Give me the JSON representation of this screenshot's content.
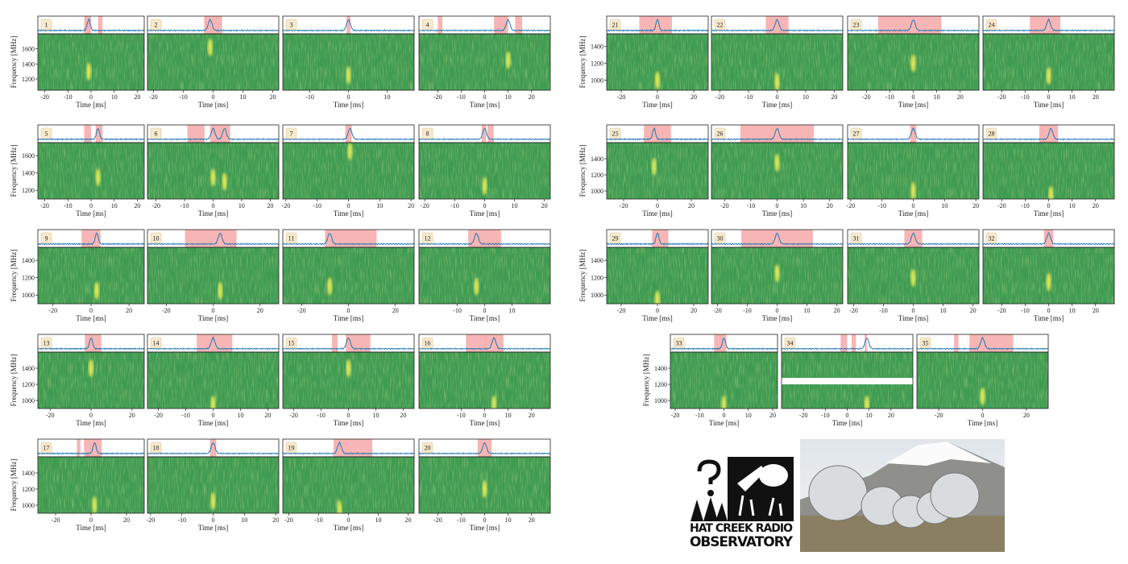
{
  "chart_data": [
    {
      "type": "spectrogram",
      "title": "1",
      "xlabel": "Time [ms]",
      "ylabel": "Frequency [MHz]",
      "xlim": [
        -23,
        23
      ],
      "xticks": [
        -20,
        -10,
        0,
        10,
        20
      ],
      "ylim": [
        1050,
        1800
      ],
      "yticks": [
        1200,
        1400,
        1600
      ],
      "spans": [
        [
          -3,
          0
        ],
        [
          3,
          5
        ]
      ],
      "bursts": [
        [
          -1,
          1300
        ]
      ]
    },
    {
      "type": "spectrogram",
      "title": "2",
      "xlabel": "Time [ms]",
      "xlim": [
        -22,
        22
      ],
      "xticks": [
        -20,
        -10,
        0,
        10,
        20
      ],
      "ylim": [
        1050,
        1800
      ],
      "spans": [
        [
          -3,
          3
        ]
      ],
      "bursts": [
        [
          -1,
          1620
        ]
      ]
    },
    {
      "type": "spectrogram",
      "title": "3",
      "xlabel": "Time [ms]",
      "xlim": [
        -17,
        17
      ],
      "xticks": [
        -10,
        0,
        10
      ],
      "ylim": [
        1050,
        1800
      ],
      "spans": [
        [
          -0.5,
          0.5
        ]
      ],
      "bursts": [
        [
          0,
          1250
        ]
      ]
    },
    {
      "type": "spectrogram",
      "title": "4",
      "xlabel": "Time [ms]",
      "xlim": [
        -28,
        28
      ],
      "xticks": [
        -20,
        -10,
        0,
        10,
        20
      ],
      "ylim": [
        1050,
        1800
      ],
      "spans": [
        [
          -20,
          -18
        ],
        [
          4,
          10
        ],
        [
          13,
          16
        ]
      ],
      "bursts": [
        [
          10,
          1450
        ]
      ]
    },
    {
      "type": "spectrogram",
      "title": "5",
      "xlabel": "Time [ms]",
      "ylabel": "Frequency [MHz]",
      "xlim": [
        -23,
        23
      ],
      "xticks": [
        -20,
        -10,
        0,
        10,
        20
      ],
      "ylim": [
        1100,
        1750
      ],
      "yticks": [
        1200,
        1400,
        1600
      ],
      "spans": [
        [
          -3,
          0
        ],
        [
          2,
          5
        ]
      ],
      "bursts": [
        [
          3,
          1350
        ]
      ]
    },
    {
      "type": "spectrogram",
      "title": "6",
      "xlabel": "Time [ms]",
      "xlim": [
        -23,
        23
      ],
      "xticks": [
        -20,
        -10,
        0,
        10,
        20
      ],
      "ylim": [
        1100,
        1750
      ],
      "spans": [
        [
          -9,
          -3
        ],
        [
          -1,
          6
        ]
      ],
      "bursts": [
        [
          0,
          1350
        ],
        [
          4,
          1300
        ]
      ]
    },
    {
      "type": "spectrogram",
      "title": "7",
      "xlabel": "Time [ms]",
      "xlim": [
        -21,
        21
      ],
      "xticks": [
        -20,
        -10,
        0,
        10,
        20
      ],
      "ylim": [
        1100,
        1750
      ],
      "spans": [
        [
          -1,
          1
        ]
      ],
      "bursts": [
        [
          0.5,
          1650
        ]
      ]
    },
    {
      "type": "spectrogram",
      "title": "8",
      "xlabel": "Time [ms]",
      "xlim": [
        -22,
        22
      ],
      "xticks": [
        -20,
        -10,
        0,
        10,
        20
      ],
      "ylim": [
        1100,
        1750
      ],
      "spans": [
        [
          -1,
          0.5
        ],
        [
          1,
          3
        ]
      ],
      "bursts": [
        [
          0,
          1250
        ]
      ]
    },
    {
      "type": "spectrogram",
      "title": "9",
      "xlabel": "Time [ms]",
      "ylabel": "Frequency [MHz]",
      "xlim": [
        -28,
        28
      ],
      "xticks": [
        -20,
        0,
        20
      ],
      "ylim": [
        900,
        1550
      ],
      "yticks": [
        1000,
        1200,
        1400
      ],
      "spans": [
        [
          -5,
          5
        ]
      ],
      "bursts": [
        [
          3,
          1050
        ]
      ]
    },
    {
      "type": "spectrogram",
      "title": "10",
      "xlabel": "Time [ms]",
      "xlim": [
        -28,
        28
      ],
      "xticks": [
        -20,
        0,
        20
      ],
      "ylim": [
        900,
        1550
      ],
      "spans": [
        [
          -12,
          10
        ]
      ],
      "bursts": [
        [
          3,
          1050
        ]
      ]
    },
    {
      "type": "spectrogram",
      "title": "11",
      "xlabel": "Time [ms]",
      "xlim": [
        -28,
        28
      ],
      "xticks": [
        -20,
        0,
        20
      ],
      "ylim": [
        900,
        1550
      ],
      "spans": [
        [
          -10,
          12
        ]
      ],
      "bursts": [
        [
          -8,
          1100
        ]
      ]
    },
    {
      "type": "spectrogram",
      "title": "12",
      "xlabel": "Time [ms]",
      "xlim": [
        -24,
        24
      ],
      "xticks": [
        -10,
        0,
        10
      ],
      "ylim": [
        900,
        1550
      ],
      "spans": [
        [
          -6,
          6
        ]
      ],
      "bursts": [
        [
          -3,
          1100
        ]
      ]
    },
    {
      "type": "spectrogram",
      "title": "13",
      "xlabel": "Time [ms]",
      "ylabel": "Frequency [MHz]",
      "xlim": [
        -26,
        26
      ],
      "xticks": [
        -20,
        0,
        20
      ],
      "ylim": [
        900,
        1600
      ],
      "yticks": [
        1000,
        1200,
        1400
      ],
      "spans": [
        [
          -3,
          5
        ]
      ],
      "bursts": [
        [
          0,
          1400
        ]
      ]
    },
    {
      "type": "spectrogram",
      "title": "14",
      "xlabel": "Time [ms]",
      "xlim": [
        -24,
        24
      ],
      "xticks": [
        -20,
        -10,
        0,
        10,
        20
      ],
      "ylim": [
        900,
        1600
      ],
      "spans": [
        [
          -6,
          7
        ]
      ],
      "bursts": [
        [
          0,
          950
        ]
      ]
    },
    {
      "type": "spectrogram",
      "title": "15",
      "xlabel": "Time [ms]",
      "xlim": [
        -24,
        24
      ],
      "xticks": [
        -20,
        -10,
        0,
        10,
        20
      ],
      "ylim": [
        900,
        1600
      ],
      "spans": [
        [
          -6,
          -4
        ],
        [
          -1,
          8
        ]
      ],
      "bursts": [
        [
          0,
          1400
        ]
      ]
    },
    {
      "type": "spectrogram",
      "title": "16",
      "xlabel": "Time [ms]",
      "xlim": [
        -28,
        28
      ],
      "xticks": [
        -10,
        0,
        10,
        20
      ],
      "ylim": [
        900,
        1600
      ],
      "spans": [
        [
          -8,
          8
        ]
      ],
      "bursts": [
        [
          4,
          950
        ]
      ]
    },
    {
      "type": "spectrogram",
      "title": "17",
      "xlabel": "Time [ms]",
      "ylabel": "Frequency [MHz]",
      "xlim": [
        -30,
        30
      ],
      "xticks": [
        -20,
        0,
        20
      ],
      "ylim": [
        900,
        1600
      ],
      "yticks": [
        1000,
        1200,
        1400
      ],
      "spans": [
        [
          -8,
          -6
        ],
        [
          -4,
          6
        ]
      ],
      "bursts": [
        [
          2,
          1000
        ]
      ]
    },
    {
      "type": "spectrogram",
      "title": "18",
      "xlabel": "Time [ms]",
      "xlim": [
        -21,
        21
      ],
      "xticks": [
        -20,
        -10,
        0,
        10,
        20
      ],
      "ylim": [
        900,
        1600
      ],
      "spans": [
        [
          -1,
          1
        ]
      ],
      "bursts": [
        [
          0,
          1050
        ]
      ]
    },
    {
      "type": "spectrogram",
      "title": "19",
      "xlabel": "Time [ms]",
      "xlim": [
        -22,
        22
      ],
      "xticks": [
        -20,
        -10,
        0,
        10,
        20
      ],
      "ylim": [
        900,
        1600
      ],
      "spans": [
        [
          -5,
          8
        ]
      ],
      "bursts": [
        [
          -3,
          950
        ]
      ]
    },
    {
      "type": "spectrogram",
      "title": "20",
      "xlabel": "Time [ms]",
      "xlim": [
        -28,
        28
      ],
      "xticks": [
        -20,
        -10,
        0,
        10,
        20
      ],
      "ylim": [
        900,
        1600
      ],
      "spans": [
        [
          -3,
          3
        ]
      ],
      "bursts": [
        [
          0,
          1200
        ]
      ]
    },
    {
      "type": "spectrogram",
      "title": "21",
      "xlabel": "Time [ms]",
      "ylabel": "Frequency [MHz]",
      "xlim": [
        -28,
        28
      ],
      "xticks": [
        -20,
        0,
        20
      ],
      "ylim": [
        880,
        1550
      ],
      "yticks": [
        1000,
        1200,
        1400
      ],
      "spans": [
        [
          -10,
          8
        ]
      ],
      "bursts": [
        [
          0,
          1000
        ]
      ]
    },
    {
      "type": "spectrogram",
      "title": "22",
      "xlabel": "Time [ms]",
      "xlim": [
        -23,
        23
      ],
      "xticks": [
        -20,
        -10,
        0,
        10,
        20
      ],
      "ylim": [
        880,
        1550
      ],
      "spans": [
        [
          -4,
          4
        ]
      ],
      "bursts": [
        [
          0,
          980
        ]
      ]
    },
    {
      "type": "spectrogram",
      "title": "23",
      "xlabel": "Time [ms]",
      "xlim": [
        -28,
        28
      ],
      "xticks": [
        -20,
        -10,
        0,
        10,
        20
      ],
      "ylim": [
        880,
        1550
      ],
      "spans": [
        [
          -15,
          12
        ]
      ],
      "bursts": [
        [
          0,
          1200
        ]
      ]
    },
    {
      "type": "spectrogram",
      "title": "24",
      "xlabel": "Time [ms]",
      "xlim": [
        -28,
        28
      ],
      "xticks": [
        -20,
        -10,
        0,
        10,
        20
      ],
      "ylim": [
        880,
        1550
      ],
      "spans": [
        [
          -8,
          5
        ]
      ],
      "bursts": [
        [
          0,
          1050
        ]
      ]
    },
    {
      "type": "spectrogram",
      "title": "25",
      "xlabel": "Time [ms]",
      "ylabel": "Frequency [MHz]",
      "xlim": [
        -30,
        30
      ],
      "xticks": [
        -20,
        0,
        20
      ],
      "ylim": [
        900,
        1600
      ],
      "yticks": [
        1000,
        1200,
        1400
      ],
      "spans": [
        [
          -8,
          8
        ]
      ],
      "bursts": [
        [
          -2,
          1300
        ]
      ]
    },
    {
      "type": "spectrogram",
      "title": "26",
      "xlabel": "Time [ms]",
      "xlim": [
        -25,
        25
      ],
      "xticks": [
        -20,
        -10,
        0,
        10,
        20
      ],
      "ylim": [
        900,
        1600
      ],
      "spans": [
        [
          -14,
          14
        ]
      ],
      "bursts": [
        [
          0,
          1350
        ]
      ]
    },
    {
      "type": "spectrogram",
      "title": "27",
      "xlabel": "Time [ms]",
      "xlim": [
        -21,
        21
      ],
      "xticks": [
        -20,
        -10,
        0,
        10,
        20
      ],
      "ylim": [
        900,
        1600
      ],
      "spans": [
        [
          -1,
          1
        ]
      ],
      "bursts": [
        [
          0,
          1000
        ]
      ]
    },
    {
      "type": "spectrogram",
      "title": "28",
      "xlabel": "Time [ms]",
      "xlim": [
        -28,
        28
      ],
      "xticks": [
        -20,
        -10,
        0,
        10,
        20
      ],
      "ylim": [
        900,
        1600
      ],
      "spans": [
        [
          -4,
          4
        ]
      ],
      "bursts": [
        [
          1,
          950
        ]
      ]
    },
    {
      "type": "spectrogram",
      "title": "29",
      "xlabel": "Time [ms]",
      "ylabel": "Frequency [MHz]",
      "xlim": [
        -28,
        28
      ],
      "xticks": [
        -20,
        0,
        20
      ],
      "ylim": [
        900,
        1550
      ],
      "yticks": [
        1000,
        1200,
        1400
      ],
      "spans": [
        [
          -3,
          6
        ]
      ],
      "bursts": [
        [
          0,
          950
        ]
      ]
    },
    {
      "type": "spectrogram",
      "title": "30",
      "xlabel": "Time [ms]",
      "xlim": [
        -22,
        22
      ],
      "xticks": [
        -20,
        -10,
        0,
        10,
        20
      ],
      "ylim": [
        900,
        1550
      ],
      "spans": [
        [
          -12,
          12
        ]
      ],
      "bursts": [
        [
          0,
          1250
        ]
      ]
    },
    {
      "type": "spectrogram",
      "title": "31",
      "xlabel": "Time [ms]",
      "xlim": [
        -22,
        22
      ],
      "xticks": [
        -20,
        -10,
        0,
        10,
        20
      ],
      "ylim": [
        900,
        1550
      ],
      "spans": [
        [
          -3,
          3
        ]
      ],
      "bursts": [
        [
          0,
          1200
        ]
      ]
    },
    {
      "type": "spectrogram",
      "title": "32",
      "xlabel": "Time [ms]",
      "xlim": [
        -28,
        28
      ],
      "xticks": [
        -20,
        -10,
        0,
        10,
        20
      ],
      "ylim": [
        900,
        1550
      ],
      "spans": [
        [
          -2,
          2
        ]
      ],
      "bursts": [
        [
          0,
          1150
        ]
      ]
    },
    {
      "type": "spectrogram",
      "title": "33",
      "xlabel": "Time [ms]",
      "ylabel": "Frequency [MHz]",
      "xlim": [
        -22,
        22
      ],
      "xticks": [
        -20,
        -10,
        0,
        10,
        20
      ],
      "ylim": [
        900,
        1600
      ],
      "yticks": [
        1000,
        1200,
        1400
      ],
      "spans": [
        [
          -4,
          1
        ]
      ],
      "bursts": [
        [
          0,
          950
        ]
      ]
    },
    {
      "type": "spectrogram",
      "title": "34",
      "xlabel": "Time [ms]",
      "xlim": [
        -30,
        30
      ],
      "xticks": [
        -20,
        -10,
        0,
        10,
        20
      ],
      "ylim": [
        900,
        1600
      ],
      "mask": [
        1200,
        1280
      ],
      "spans": [
        [
          -3,
          0
        ],
        [
          2,
          4
        ],
        [
          8,
          9
        ]
      ],
      "bursts": [
        [
          9,
          950
        ]
      ]
    },
    {
      "type": "spectrogram",
      "title": "35",
      "xlabel": "Time [ms]",
      "xlim": [
        -30,
        30
      ],
      "xticks": [
        -20,
        0,
        20
      ],
      "ylim": [
        900,
        1600
      ],
      "spans": [
        [
          -13,
          -11
        ],
        [
          -6,
          14
        ]
      ],
      "bursts": [
        [
          0,
          1050
        ]
      ]
    }
  ],
  "logo": {
    "line1": "HAT CREEK RADIO",
    "line2": "OBSERVATORY"
  }
}
